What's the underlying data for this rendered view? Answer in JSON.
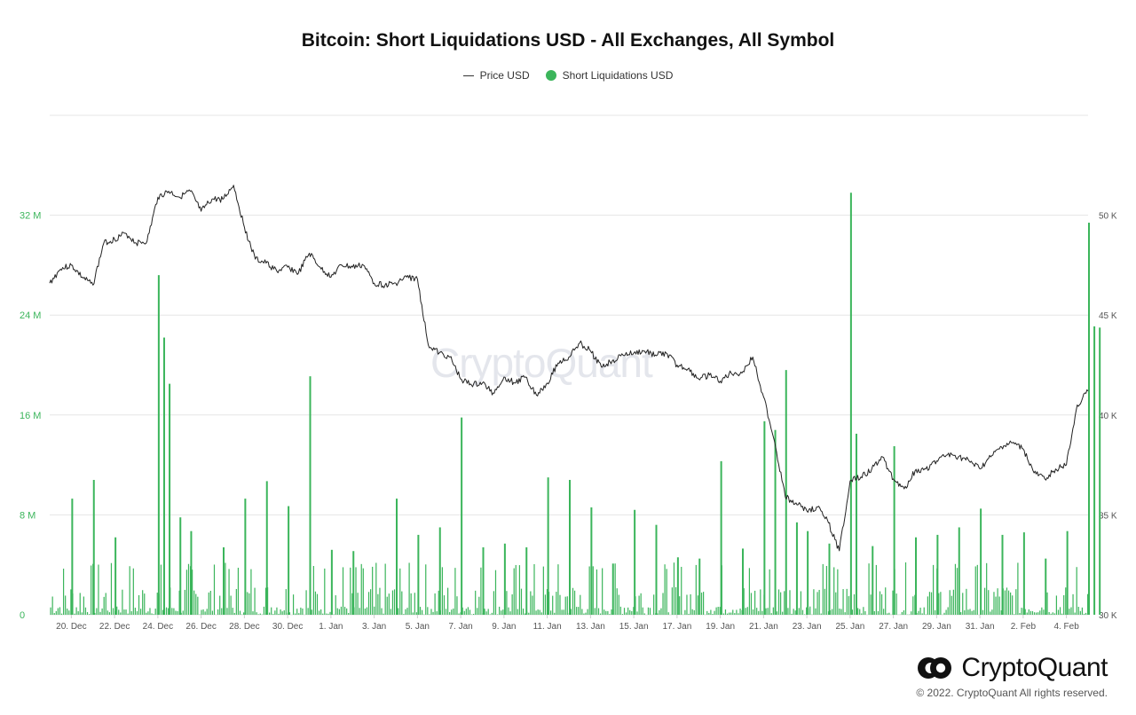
{
  "chart_data": {
    "type": "bar+line",
    "title": "Bitcoin: Short Liquidations USD - All Exchanges, All Symbol",
    "legend_position": "top-center",
    "grid": true,
    "series": [
      {
        "name": "Price USD",
        "type": "line",
        "axis": "right",
        "color": "#222222",
        "points": [
          [
            "19. Dec",
            46.6
          ],
          [
            "19. Dec 12h",
            47.3
          ],
          [
            "20. Dec",
            47.5
          ],
          [
            "20. Dec 12h",
            46.9
          ],
          [
            "21. Dec",
            46.5
          ],
          [
            "21. Dec 12h",
            48.6
          ],
          [
            "22. Dec",
            48.8
          ],
          [
            "22. Dec 12h",
            49.1
          ],
          [
            "23. Dec",
            48.6
          ],
          [
            "23. Dec 12h",
            48.7
          ],
          [
            "24. Dec",
            50.9
          ],
          [
            "24. Dec 12h",
            51.2
          ],
          [
            "25. Dec",
            50.9
          ],
          [
            "25. Dec 12h",
            51.2
          ],
          [
            "26. Dec",
            50.2
          ],
          [
            "26. Dec 12h",
            50.8
          ],
          [
            "27. Dec",
            50.8
          ],
          [
            "27. Dec 12h",
            51.5
          ],
          [
            "28. Dec",
            49.4
          ],
          [
            "28. Dec 12h",
            47.8
          ],
          [
            "29. Dec",
            47.6
          ],
          [
            "29. Dec 12h",
            47.2
          ],
          [
            "30. Dec",
            47.4
          ],
          [
            "30. Dec 12h",
            47.1
          ],
          [
            "31. Dec",
            48.1
          ],
          [
            "31. Dec 12h",
            47.4
          ],
          [
            "1. Jan",
            46.9
          ],
          [
            "1. Jan 12h",
            47.5
          ],
          [
            "2. Jan",
            47.4
          ],
          [
            "2. Jan 12h",
            47.5
          ],
          [
            "3. Jan",
            46.6
          ],
          [
            "3. Jan 12h",
            46.5
          ],
          [
            "4. Jan",
            46.6
          ],
          [
            "4. Jan 12h",
            46.9
          ],
          [
            "5. Jan",
            46.8
          ],
          [
            "5. Jan 12h",
            43.5
          ],
          [
            "6. Jan",
            43.1
          ],
          [
            "6. Jan 12h",
            42.9
          ],
          [
            "7. Jan",
            41.8
          ],
          [
            "7. Jan 12h",
            41.5
          ],
          [
            "8. Jan",
            41.6
          ],
          [
            "8. Jan 12h",
            41.1
          ],
          [
            "9. Jan",
            41.9
          ],
          [
            "9. Jan 12h",
            41.6
          ],
          [
            "10. Jan",
            41.9
          ],
          [
            "10. Jan 12h",
            41.0
          ],
          [
            "11. Jan",
            41.6
          ],
          [
            "11. Jan 12h",
            42.6
          ],
          [
            "12. Jan",
            42.9
          ],
          [
            "12. Jan 12h",
            43.6
          ],
          [
            "13. Jan",
            43.2
          ],
          [
            "13. Jan 12h",
            42.4
          ],
          [
            "14. Jan",
            42.7
          ],
          [
            "14. Jan 12h",
            43.0
          ],
          [
            "15. Jan",
            43.1
          ],
          [
            "15. Jan 12h",
            43.2
          ],
          [
            "16. Jan",
            43.0
          ],
          [
            "16. Jan 12h",
            43.1
          ],
          [
            "17. Jan",
            42.5
          ],
          [
            "17. Jan 12h",
            42.3
          ],
          [
            "18. Jan",
            41.8
          ],
          [
            "18. Jan 12h",
            42.0
          ],
          [
            "19. Jan",
            41.7
          ],
          [
            "19. Jan 12h",
            42.1
          ],
          [
            "20. Jan",
            42.1
          ],
          [
            "20. Jan 12h",
            42.9
          ],
          [
            "21. Jan",
            40.9
          ],
          [
            "21. Jan 12h",
            38.7
          ],
          [
            "22. Jan",
            35.9
          ],
          [
            "22. Jan 12h",
            35.6
          ],
          [
            "23. Jan",
            35.2
          ],
          [
            "23. Jan 12h",
            35.4
          ],
          [
            "24. Jan",
            34.6
          ],
          [
            "24. Jan 12h",
            33.2
          ],
          [
            "25. Jan",
            36.7
          ],
          [
            "25. Jan 12h",
            36.9
          ],
          [
            "26. Jan",
            37.3
          ],
          [
            "26. Jan 12h",
            37.9
          ],
          [
            "27. Jan",
            36.8
          ],
          [
            "27. Jan 12h",
            36.3
          ],
          [
            "28. Jan",
            37.2
          ],
          [
            "28. Jan 12h",
            37.3
          ],
          [
            "29. Jan",
            37.7
          ],
          [
            "29. Jan 12h",
            38.0
          ],
          [
            "30. Jan",
            37.9
          ],
          [
            "30. Jan 12h",
            37.7
          ],
          [
            "31. Jan",
            37.3
          ],
          [
            "31. Jan 12h",
            37.9
          ],
          [
            "1. Feb",
            38.4
          ],
          [
            "1. Feb 12h",
            38.6
          ],
          [
            "2. Feb",
            38.3
          ],
          [
            "2. Feb 12h",
            37.1
          ],
          [
            "3. Feb",
            36.8
          ],
          [
            "3. Feb 12h",
            37.3
          ],
          [
            "4. Feb",
            37.5
          ],
          [
            "4. Feb 12h",
            40.5
          ],
          [
            "5. Feb",
            41.2
          ]
        ]
      },
      {
        "name": "Short Liquidations USD",
        "type": "bar",
        "axis": "left",
        "color": "#3bb55b",
        "spikes": [
          [
            "20. Dec",
            9.3
          ],
          [
            "21. Dec",
            10.8
          ],
          [
            "22. Dec",
            6.2
          ],
          [
            "24. Dec",
            27.2
          ],
          [
            "24. Dec 6h",
            22.2
          ],
          [
            "24. Dec 12h",
            18.5
          ],
          [
            "25. Dec",
            7.8
          ],
          [
            "25. Dec 12h",
            6.7
          ],
          [
            "27. Dec",
            5.4
          ],
          [
            "28. Dec",
            9.3
          ],
          [
            "29. Dec",
            10.7
          ],
          [
            "30. Dec",
            8.7
          ],
          [
            "31. Dec",
            19.1
          ],
          [
            "1. Jan",
            5.2
          ],
          [
            "2. Jan",
            5.1
          ],
          [
            "4. Jan",
            9.3
          ],
          [
            "5. Jan",
            6.4
          ],
          [
            "6. Jan",
            7.0
          ],
          [
            "7. Jan",
            15.8
          ],
          [
            "8. Jan",
            5.4
          ],
          [
            "9. Jan",
            5.7
          ],
          [
            "10. Jan",
            5.4
          ],
          [
            "11. Jan",
            11.0
          ],
          [
            "12. Jan",
            10.8
          ],
          [
            "13. Jan",
            8.6
          ],
          [
            "14. Jan",
            4.1
          ],
          [
            "15. Jan",
            8.4
          ],
          [
            "16. Jan",
            7.2
          ],
          [
            "17. Jan",
            4.6
          ],
          [
            "18. Jan",
            4.5
          ],
          [
            "19. Jan",
            12.3
          ],
          [
            "20. Jan",
            5.3
          ],
          [
            "21. Jan",
            15.5
          ],
          [
            "21. Jan 12h",
            14.8
          ],
          [
            "22. Jan",
            19.6
          ],
          [
            "22. Jan 12h",
            7.4
          ],
          [
            "23. Jan",
            6.7
          ],
          [
            "24. Jan",
            5.7
          ],
          [
            "25. Jan",
            33.8
          ],
          [
            "25. Jan 6h",
            14.5
          ],
          [
            "26. Jan",
            5.5
          ],
          [
            "27. Jan",
            13.5
          ],
          [
            "28. Jan",
            6.2
          ],
          [
            "29. Jan",
            6.4
          ],
          [
            "30. Jan",
            7.0
          ],
          [
            "31. Jan",
            8.5
          ],
          [
            "1. Feb",
            6.4
          ],
          [
            "2. Feb",
            6.6
          ],
          [
            "3. Feb",
            4.5
          ],
          [
            "4. Feb",
            6.7
          ],
          [
            "5. Feb",
            31.4
          ],
          [
            "5. Feb 6h",
            23.1
          ],
          [
            "5. Feb 12h",
            23.0
          ]
        ]
      }
    ],
    "left_axis": {
      "ticks": [
        "0",
        "8 M",
        "16 M",
        "24 M",
        "32 M"
      ],
      "ylim": [
        0,
        40
      ],
      "color": "#3bb55b"
    },
    "right_axis": {
      "ticks": [
        "30 K",
        "35 K",
        "40 K",
        "45 K",
        "50 K"
      ],
      "ylim": [
        30,
        55
      ],
      "color": "#555555"
    },
    "x_ticks": [
      "20. Dec",
      "22. Dec",
      "24. Dec",
      "26. Dec",
      "28. Dec",
      "30. Dec",
      "1. Jan",
      "3. Jan",
      "5. Jan",
      "7. Jan",
      "9. Jan",
      "11. Jan",
      "13. Jan",
      "15. Jan",
      "17. Jan",
      "19. Jan",
      "21. Jan",
      "23. Jan",
      "25. Jan",
      "27. Jan",
      "29. Jan",
      "31. Jan",
      "2. Feb",
      "4. Feb"
    ],
    "xrange": [
      "19. Dec",
      "5. Feb"
    ]
  },
  "watermark": "CryptoQuant",
  "brand": {
    "name": "CryptoQuant",
    "copyright": "© 2022. CryptoQuant All rights reserved."
  },
  "colors": {
    "bar": "#3bb55b",
    "line": "#222222",
    "grid": "#e6e6e6"
  }
}
